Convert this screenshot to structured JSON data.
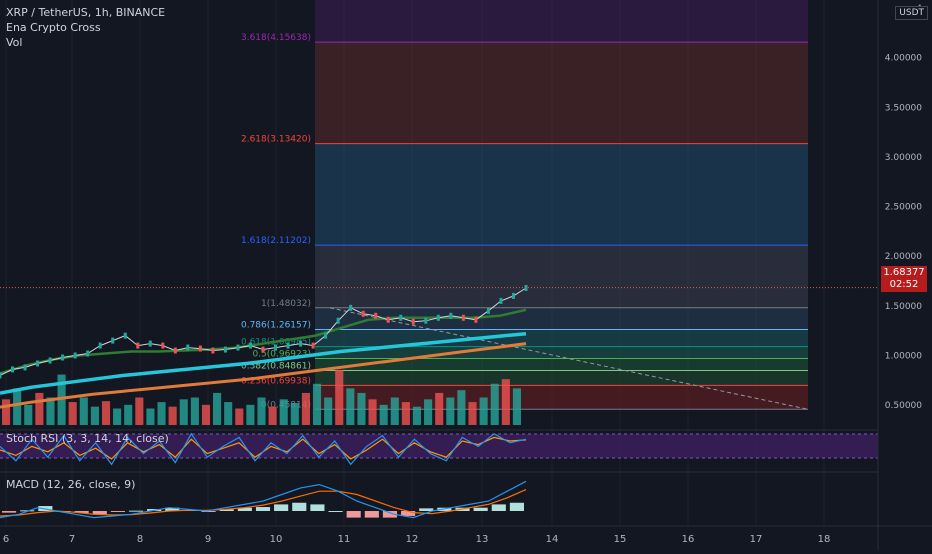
{
  "header": {
    "symbol_line": "XRP / TetherUS, 1h, BINANCE",
    "indicator_1": "Ena Crypto Cross",
    "indicator_2": "Vol",
    "currency_badge": "USDT"
  },
  "price_tag": {
    "value": "1.68377",
    "countdown": "02:52"
  },
  "colors": {
    "background": "#131722",
    "grid": "#1e222d",
    "up": "#26a69a",
    "down": "#ef5350",
    "ma_fast": "#2e7d32",
    "ma_slow": "#26c6da",
    "ma_long": "#e07b3a",
    "stoch_k": "#2196f3",
    "stoch_d": "#ff9800",
    "macd": "#2196f3",
    "signal": "#ff6d00"
  },
  "chart_data": [
    {
      "type": "line",
      "title": "XRP / TetherUS, 1h, BINANCE",
      "x_ticks": [
        "6",
        "7",
        "8",
        "9",
        "10",
        "11",
        "12",
        "13",
        "14",
        "15",
        "16",
        "17",
        "18"
      ],
      "y_ticks": [
        "0.50000",
        "1.00000",
        "1.50000",
        "2.00000",
        "2.50000",
        "3.00000",
        "3.50000",
        "4.00000",
        "4"
      ],
      "ylim": [
        0.3,
        4.5
      ],
      "current_price": 1.68377,
      "fibonacci": [
        {
          "label": "0(0.45814)",
          "level": 0.45814,
          "color": "#787b86"
        },
        {
          "label": "0.236(0.69938)",
          "level": 0.69938,
          "color": "#f44336"
        },
        {
          "label": "0.382(0.84861)",
          "level": 0.84861,
          "color": "#81c784"
        },
        {
          "label": "0.5(0.96923)",
          "level": 0.96923,
          "color": "#4caf50"
        },
        {
          "label": "0.618(1.08985)",
          "level": 1.08985,
          "color": "#009688"
        },
        {
          "label": "0.786(1.26157)",
          "level": 1.26157,
          "color": "#64b5f6"
        },
        {
          "label": "1(1.48032)",
          "level": 1.48032,
          "color": "#787b86"
        },
        {
          "label": "1.618(2.11202)",
          "level": 2.11202,
          "color": "#2962ff"
        },
        {
          "label": "2.618(3.13420)",
          "level": 3.1342,
          "color": "#f44336"
        },
        {
          "label": "3.618(4.15638)",
          "level": 4.15638,
          "color": "#9c27b0"
        }
      ],
      "series": [
        {
          "name": "price",
          "values": [
            0.8,
            0.86,
            0.88,
            0.92,
            0.95,
            0.98,
            1.0,
            1.02,
            1.1,
            1.15,
            1.2,
            1.1,
            1.12,
            1.1,
            1.05,
            1.08,
            1.07,
            1.05,
            1.06,
            1.08,
            1.1,
            1.06,
            1.08,
            1.1,
            1.12,
            1.1,
            1.2,
            1.35,
            1.48,
            1.42,
            1.4,
            1.36,
            1.38,
            1.34,
            1.35,
            1.38,
            1.4,
            1.38,
            1.36,
            1.45,
            1.55,
            1.6,
            1.68
          ]
        },
        {
          "name": "ma_fast",
          "values": [
            0.82,
            0.9,
            0.96,
            1.0,
            1.02,
            1.04,
            1.04,
            1.05,
            1.06,
            1.08,
            1.12,
            1.16,
            1.2,
            1.28,
            1.36,
            1.38,
            1.38,
            1.38,
            1.38,
            1.4,
            1.46
          ]
        },
        {
          "name": "ma_slow",
          "values": [
            0.62,
            0.68,
            0.72,
            0.76,
            0.8,
            0.83,
            0.86,
            0.89,
            0.92,
            0.96,
            1.0,
            1.04,
            1.07,
            1.1,
            1.13,
            1.16,
            1.19,
            1.22
          ]
        },
        {
          "name": "ma_long",
          "values": [
            0.48,
            0.53,
            0.57,
            0.61,
            0.64,
            0.67,
            0.7,
            0.73,
            0.76,
            0.8,
            0.84,
            0.88,
            0.92,
            0.96,
            1.0,
            1.04,
            1.08,
            1.12
          ]
        }
      ],
      "volume": [
        28,
        40,
        22,
        35,
        30,
        55,
        25,
        30,
        20,
        26,
        18,
        22,
        30,
        18,
        25,
        20,
        28,
        30,
        22,
        35,
        25,
        18,
        22,
        30,
        20,
        28,
        24,
        35,
        45,
        30,
        60,
        40,
        35,
        28,
        22,
        30,
        25,
        20,
        28,
        35,
        30,
        38,
        25,
        30,
        45,
        50,
        40
      ]
    },
    {
      "type": "line",
      "title": "Stoch RSI (3, 3, 14, 14, close)",
      "y_ticks": [
        "100",
        "0"
      ],
      "ylim": [
        0,
        100
      ],
      "series": [
        {
          "name": "K",
          "values": [
            60,
            20,
            80,
            30,
            90,
            20,
            70,
            10,
            85,
            40,
            75,
            15,
            95,
            30,
            60,
            85,
            20,
            70,
            40,
            90,
            30,
            75,
            10,
            60,
            90,
            30,
            80,
            40,
            20,
            85,
            60,
            95,
            70,
            80
          ]
        },
        {
          "name": "D",
          "values": [
            50,
            35,
            60,
            45,
            70,
            35,
            55,
            25,
            70,
            45,
            65,
            30,
            80,
            40,
            55,
            70,
            30,
            60,
            45,
            80,
            40,
            65,
            25,
            50,
            80,
            40,
            70,
            45,
            30,
            75,
            65,
            85,
            75,
            78
          ]
        }
      ]
    },
    {
      "type": "line",
      "title": "MACD (12, 26, close, 9)",
      "y_ticks": [
        "0"
      ],
      "series": [
        {
          "name": "MACD",
          "values": [
            -0.02,
            -0.01,
            0.01,
            0.0,
            -0.01,
            -0.02,
            -0.015,
            -0.01,
            0.0,
            0.01,
            0.005,
            0.0,
            0.01,
            0.02,
            0.03,
            0.05,
            0.07,
            0.08,
            0.06,
            0.03,
            0.01,
            -0.01,
            -0.02,
            0.0,
            0.01,
            0.02,
            0.03,
            0.06,
            0.09
          ]
        },
        {
          "name": "Signal",
          "values": [
            -0.015,
            -0.012,
            -0.005,
            0.0,
            -0.004,
            -0.01,
            -0.012,
            -0.011,
            -0.006,
            0.0,
            0.002,
            0.002,
            0.005,
            0.01,
            0.018,
            0.03,
            0.045,
            0.06,
            0.06,
            0.05,
            0.03,
            0.01,
            -0.005,
            -0.008,
            0.0,
            0.01,
            0.02,
            0.04,
            0.065
          ]
        },
        {
          "name": "Histogram",
          "values": [
            -0.005,
            0.002,
            0.015,
            0.0,
            -0.006,
            -0.01,
            -0.003,
            0.001,
            0.006,
            0.01,
            0.003,
            -0.002,
            0.005,
            0.01,
            0.012,
            0.02,
            0.025,
            0.02,
            0.0,
            -0.02,
            -0.02,
            -0.02,
            -0.015,
            0.008,
            0.01,
            0.01,
            0.01,
            0.02,
            0.025
          ]
        }
      ]
    }
  ]
}
